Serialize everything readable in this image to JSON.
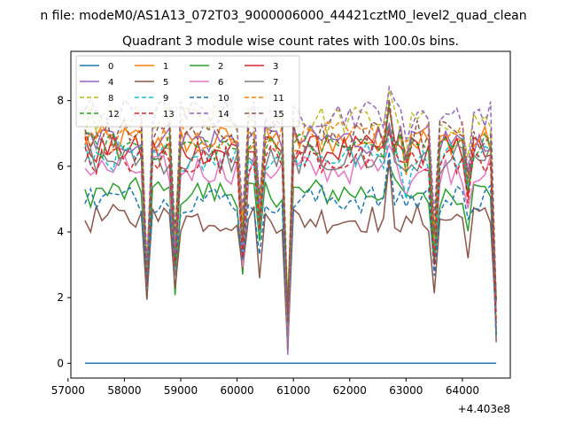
{
  "figure": {
    "suptitle": "n file: modeM0/AS1A13_072T03_9000006000_44421cztM0_level2_quad_clean",
    "title": "Quadrant 3 module wise count rates with 100.0s bins.",
    "offset_text": "+4.403e8"
  },
  "chart_data": {
    "type": "line",
    "xlim": [
      57050,
      64850
    ],
    "ylim": [
      -0.45,
      9.5
    ],
    "xticks": [
      57000,
      58000,
      59000,
      60000,
      61000,
      62000,
      63000,
      64000
    ],
    "xtick_labels": [
      "57000",
      "58000",
      "59000",
      "60000",
      "61000",
      "62000",
      "63000",
      "64000"
    ],
    "yticks": [
      0,
      2,
      4,
      6,
      8
    ],
    "ytick_labels": [
      "0",
      "2",
      "4",
      "6",
      "8"
    ],
    "legend_position": "upper-left",
    "legend_columns": 4,
    "grid": false,
    "series_names": [
      "0",
      "1",
      "2",
      "3",
      "4",
      "5",
      "6",
      "7",
      "8",
      "9",
      "10",
      "11",
      "12",
      "13",
      "14",
      "15"
    ],
    "series_colors": [
      "#1f77b4",
      "#ff7f0e",
      "#2ca02c",
      "#d62728",
      "#9467bd",
      "#8c564b",
      "#e377c2",
      "#7f7f7f",
      "#bcbd22",
      "#17becf",
      "#1f77b4",
      "#ff7f0e",
      "#2ca02c",
      "#d62728",
      "#9467bd",
      "#8c564b"
    ],
    "series_dashed": [
      false,
      false,
      false,
      false,
      false,
      false,
      false,
      false,
      true,
      true,
      true,
      true,
      true,
      true,
      true,
      true
    ],
    "x_start": 57300,
    "x_step": 100,
    "series_levels": [
      0,
      6.8,
      5.2,
      6.5,
      6.8,
      4.4,
      5.9,
      6.2,
      7.4,
      6.3,
      5.0,
      6.9,
      6.6,
      6.2,
      7.6,
      7.0
    ],
    "dips": [
      {
        "x": 58400,
        "depth": 0.68
      },
      {
        "x": 58900,
        "depth": 0.58
      },
      {
        "x": 60100,
        "depth": 0.5
      },
      {
        "x": 60400,
        "depth": 0.38
      },
      {
        "x": 60900,
        "depth": 0.98
      },
      {
        "x": 63000,
        "depth": 0.3
      },
      {
        "x": 63500,
        "depth": 0.55
      },
      {
        "x": 64100,
        "depth": 0.22
      },
      {
        "x": 64600,
        "depth": 0.92
      }
    ],
    "peaks": [
      {
        "x": 62700,
        "height": 1.6
      },
      {
        "x": 63000,
        "height": 2.2
      }
    ],
    "noise_amplitude": 0.45
  }
}
